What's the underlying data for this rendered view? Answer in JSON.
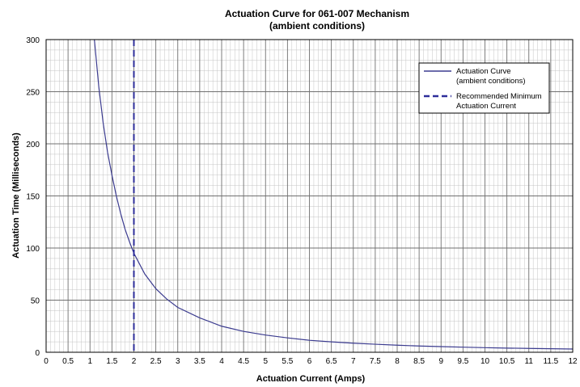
{
  "chart_data": {
    "type": "line",
    "title": "Actuation Curve for 061-007 Mechanism",
    "subtitle": "(ambient conditions)",
    "xlabel": "Actuation Current (Amps)",
    "ylabel": "Actuation Time (Milliseconds)",
    "xlim": [
      0,
      12
    ],
    "ylim": [
      0,
      300
    ],
    "x_ticks": [
      "0",
      "0.5",
      "1",
      "1.5",
      "2",
      "2.5",
      "3",
      "3.5",
      "4",
      "4.5",
      "5",
      "5.5",
      "6",
      "6.5",
      "7",
      "7.5",
      "8",
      "8.5",
      "9",
      "9.5",
      "10",
      "10.5",
      "11",
      "11.5",
      "12"
    ],
    "y_ticks": [
      "0",
      "50",
      "100",
      "150",
      "200",
      "250",
      "300"
    ],
    "grid": true,
    "legend_position": "top-right",
    "series": [
      {
        "name": "Actuation Curve\n(ambient conditions)",
        "style": "solid",
        "color": "#3b3b8f",
        "points": [
          [
            1.1,
            300
          ],
          [
            1.2,
            255
          ],
          [
            1.3,
            220
          ],
          [
            1.4,
            192
          ],
          [
            1.5,
            170
          ],
          [
            1.6,
            150
          ],
          [
            1.7,
            133
          ],
          [
            1.8,
            118
          ],
          [
            1.9,
            106
          ],
          [
            2.0,
            95
          ],
          [
            2.25,
            75
          ],
          [
            2.5,
            61
          ],
          [
            2.75,
            51
          ],
          [
            3.0,
            43
          ],
          [
            3.5,
            33
          ],
          [
            4.0,
            25
          ],
          [
            4.5,
            20
          ],
          [
            5.0,
            16.5
          ],
          [
            5.5,
            13.8
          ],
          [
            6.0,
            11.5
          ],
          [
            6.5,
            10
          ],
          [
            7.0,
            8.7
          ],
          [
            7.5,
            7.7
          ],
          [
            8.0,
            6.8
          ],
          [
            8.5,
            6
          ],
          [
            9.0,
            5.4
          ],
          [
            9.5,
            4.9
          ],
          [
            10.0,
            4.4
          ],
          [
            10.5,
            4
          ],
          [
            11.0,
            3.7
          ],
          [
            11.5,
            3.4
          ],
          [
            12.0,
            3.1
          ]
        ]
      },
      {
        "name": "Recommended Minimum\nActuation Current",
        "style": "dashed",
        "color": "#2e2e9a",
        "x_value": 2
      }
    ]
  }
}
